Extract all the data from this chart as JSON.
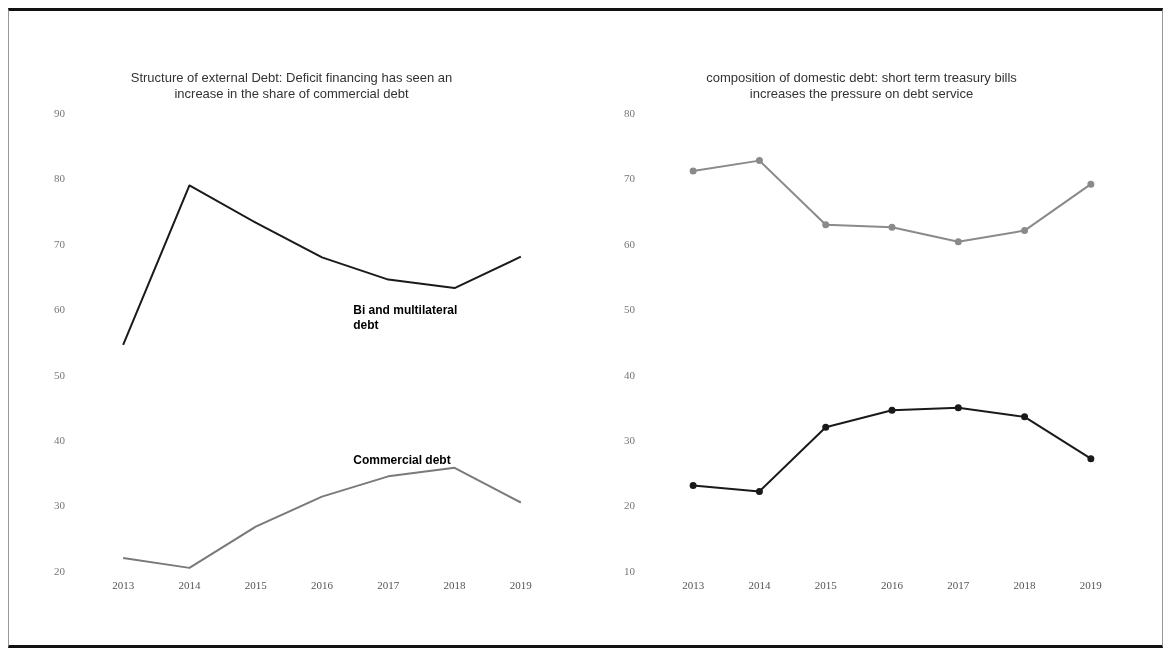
{
  "chart_data": [
    {
      "type": "line",
      "title": "Structure of external Debt: Deficit financing has seen an increase in the share of commercial debt",
      "categories": [
        "2013",
        "2014",
        "2015",
        "2016",
        "2017",
        "2018",
        "2019"
      ],
      "series": [
        {
          "name": "Bi and multilateral debt",
          "color": "#1a1a1a",
          "values": [
            54.7,
            79.1,
            73.4,
            68.1,
            64.7,
            63.4,
            68.2
          ]
        },
        {
          "name": "Commercial debt",
          "color": "#7a7a7a",
          "values": [
            22.1,
            20.6,
            26.9,
            31.5,
            34.6,
            35.9,
            30.6
          ]
        }
      ],
      "ylim": [
        20,
        90
      ],
      "yticks": [
        20,
        30,
        40,
        50,
        60,
        70,
        80,
        90
      ],
      "grid": false,
      "legend": false,
      "marker": "none"
    },
    {
      "type": "line",
      "title": "composition of domestic debt: short term treasury bills increases the pressure on debt service",
      "categories": [
        "2013",
        "2014",
        "2015",
        "2016",
        "2017",
        "2018",
        "2019"
      ],
      "series": [
        {
          "color": "#8a8a8a",
          "values": [
            71.3,
            72.9,
            63.1,
            62.7,
            60.5,
            62.2,
            69.3
          ]
        },
        {
          "color": "#1a1a1a",
          "values": [
            23.2,
            22.3,
            32.1,
            34.7,
            35.1,
            33.7,
            27.3
          ]
        }
      ],
      "ylim": [
        10,
        80
      ],
      "yticks": [
        10,
        20,
        30,
        40,
        50,
        60,
        70,
        80
      ],
      "grid": false,
      "legend": false,
      "marker": "circle"
    }
  ]
}
